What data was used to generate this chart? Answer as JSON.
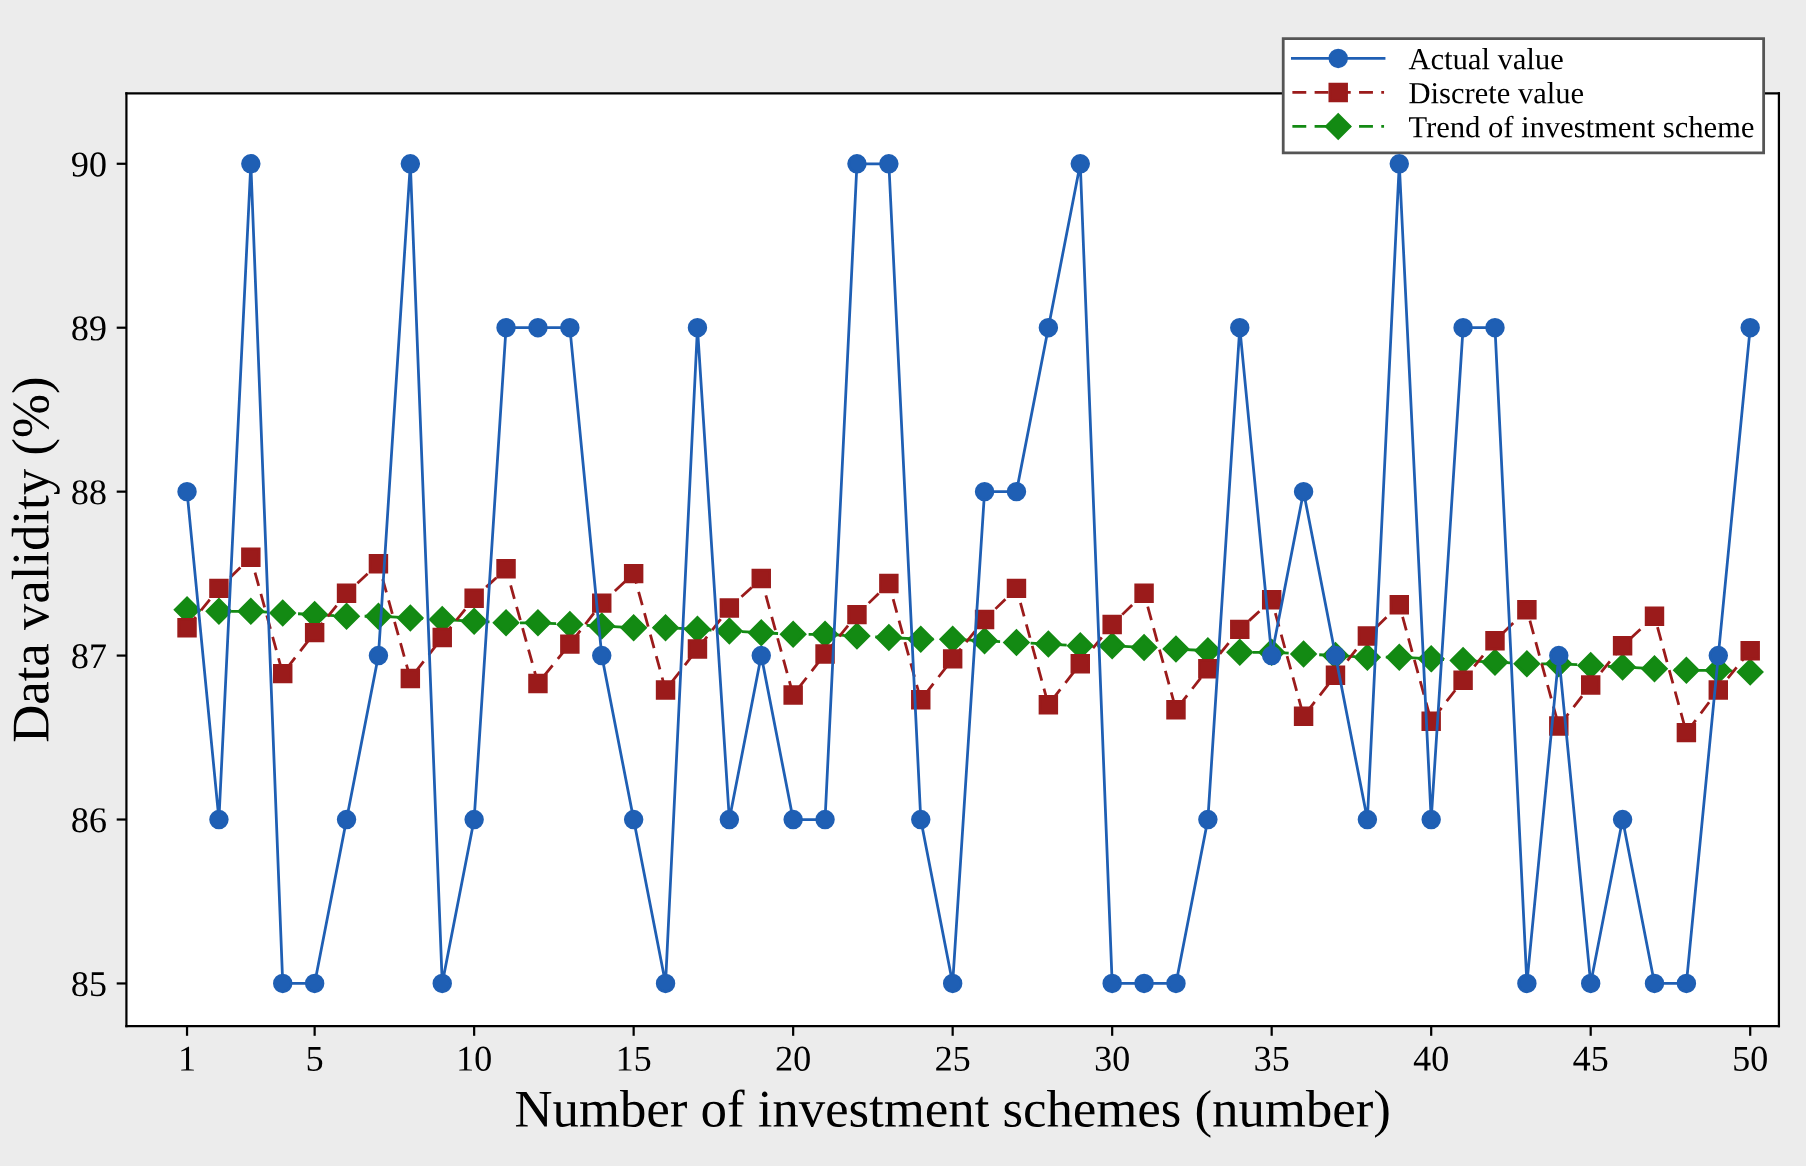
{
  "chart_data": {
    "type": "line",
    "xlabel": "Number of investment schemes (number)",
    "ylabel": "Data validity (%)",
    "x": [
      1,
      2,
      3,
      4,
      5,
      6,
      7,
      8,
      9,
      10,
      11,
      12,
      13,
      14,
      15,
      16,
      17,
      18,
      19,
      20,
      21,
      22,
      23,
      24,
      25,
      26,
      27,
      28,
      29,
      30,
      31,
      32,
      33,
      34,
      35,
      36,
      37,
      38,
      39,
      40,
      41,
      42,
      43,
      44,
      45,
      46,
      47,
      48,
      49,
      50
    ],
    "series": [
      {
        "name": "Actual value",
        "color": "#1f5fb4",
        "marker": "circle",
        "line_style": "solid",
        "values": [
          88,
          86,
          90,
          85,
          85,
          86,
          87,
          90,
          85,
          86,
          89,
          89,
          89,
          87,
          86,
          85,
          89,
          86,
          87,
          86,
          86,
          90,
          90,
          86,
          85,
          88,
          88,
          89,
          90,
          85,
          85,
          85,
          86,
          89,
          87,
          88,
          87,
          86,
          90,
          86,
          89,
          89,
          85,
          87,
          85,
          86,
          85,
          85,
          87,
          89
        ]
      },
      {
        "name": "Discrete value",
        "color": "#9b1b1b",
        "marker": "square",
        "line_style": "dashed",
        "values": [
          87.17,
          87.41,
          87.6,
          86.89,
          87.14,
          87.38,
          87.56,
          86.86,
          87.11,
          87.35,
          87.53,
          86.83,
          87.07,
          87.32,
          87.5,
          86.79,
          87.04,
          87.29,
          87.47,
          86.76,
          87.01,
          87.25,
          87.44,
          86.73,
          86.98,
          87.22,
          87.41,
          86.7,
          86.95,
          87.19,
          87.38,
          86.67,
          86.92,
          87.16,
          87.34,
          86.63,
          86.88,
          87.12,
          87.31,
          86.6,
          86.85,
          87.09,
          87.28,
          86.57,
          86.82,
          87.06,
          87.24,
          86.53,
          86.79,
          87.03
        ]
      },
      {
        "name": "Trend of investment scheme",
        "color": "#138a13",
        "marker": "diamond",
        "line_style": "dashed",
        "values": [
          87.28,
          87.27,
          87.27,
          87.26,
          87.25,
          87.24,
          87.24,
          87.23,
          87.22,
          87.21,
          87.2,
          87.2,
          87.19,
          87.18,
          87.17,
          87.17,
          87.16,
          87.15,
          87.14,
          87.13,
          87.13,
          87.12,
          87.11,
          87.1,
          87.1,
          87.09,
          87.08,
          87.07,
          87.06,
          87.06,
          87.05,
          87.04,
          87.03,
          87.02,
          87.02,
          87.01,
          87.0,
          86.99,
          86.99,
          86.98,
          86.97,
          86.96,
          86.95,
          86.95,
          86.94,
          86.93,
          86.92,
          86.91,
          86.91,
          86.9
        ]
      }
    ],
    "xlim": [
      -0.9,
      50.9
    ],
    "xticks": [
      1,
      5,
      10,
      15,
      20,
      25,
      30,
      35,
      40,
      45,
      50
    ],
    "ylim": [
      84.74,
      90.43
    ],
    "yticks": [
      85,
      86,
      87,
      88,
      89,
      90
    ],
    "grid": false,
    "legend": "top right"
  }
}
